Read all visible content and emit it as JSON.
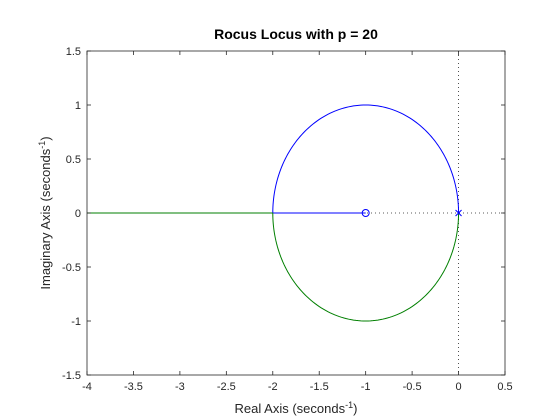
{
  "chart_data": {
    "type": "line",
    "title": "Rocus Locus with p = 20",
    "xlabel": {
      "main": "Real Axis (seconds",
      "sup": "-1",
      "end": ")"
    },
    "ylabel": {
      "main": "Imaginary Axis (seconds",
      "sup": "-1",
      "end": ")"
    },
    "xlim": [
      -4,
      0.5
    ],
    "ylim": [
      -1.5,
      1.5
    ],
    "x_ticks": [
      "-4",
      "-3.5",
      "-3",
      "-2.5",
      "-2",
      "-1.5",
      "-1",
      "-0.5",
      "0",
      "0.5"
    ],
    "y_ticks": [
      "-1.5",
      "-1",
      "-0.5",
      "0",
      "0.5",
      "1",
      "1.5"
    ],
    "grid": false,
    "colors": {
      "branch1": "#0000ff",
      "branch2": "#007f00",
      "axes": "#262626",
      "reference": "#262626"
    },
    "series": [
      {
        "color": "#0000ff",
        "segments": [
          {
            "kind": "arc",
            "center": [
              -1,
              0
            ],
            "radius": 1,
            "from_deg": 0,
            "to_deg": 180,
            "direction": "upper"
          },
          {
            "kind": "line",
            "points": [
              [
                -2,
                0
              ],
              [
                -1,
                0
              ]
            ]
          }
        ]
      },
      {
        "color": "#007f00",
        "segments": [
          {
            "kind": "arc",
            "center": [
              -1,
              0
            ],
            "radius": 1,
            "from_deg": 0,
            "to_deg": 180,
            "direction": "lower"
          },
          {
            "kind": "line",
            "points": [
              [
                -2,
                0
              ],
              [
                -4,
                0
              ]
            ]
          }
        ]
      }
    ],
    "poles": [
      [
        0,
        0
      ]
    ],
    "zeros": [
      [
        -1,
        0
      ]
    ],
    "reference_lines": {
      "horizontal": 0,
      "vertical": 0,
      "style": "dotted"
    }
  }
}
